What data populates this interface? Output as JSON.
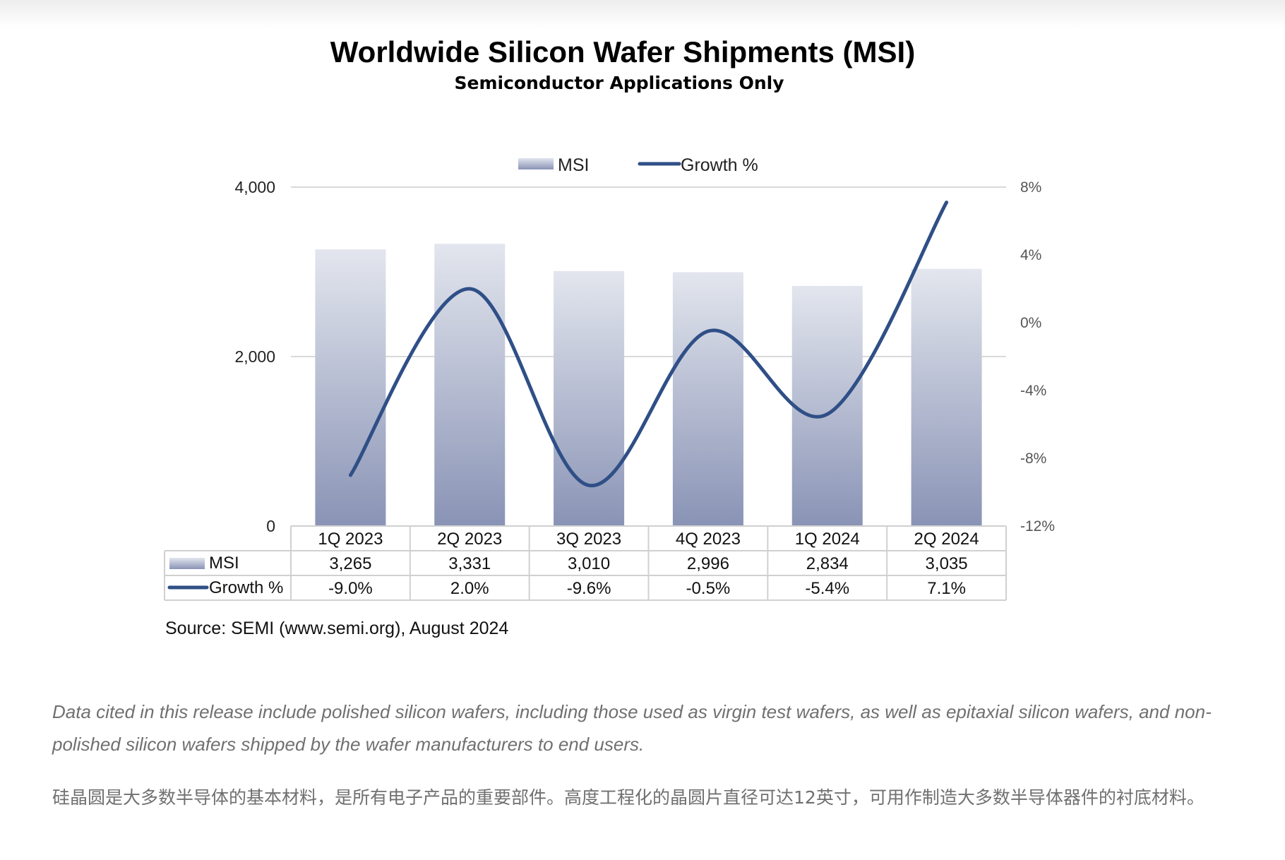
{
  "chart_data": {
    "type": "bar",
    "title": "Worldwide Silicon Wafer Shipments (MSI)",
    "subtitle": "Semiconductor Applications Only",
    "categories": [
      "1Q 2023",
      "2Q 2023",
      "3Q 2023",
      "4Q 2023",
      "1Q 2024",
      "2Q 2024"
    ],
    "series": [
      {
        "name": "MSI",
        "type": "bar",
        "axis": "left",
        "values": [
          3265,
          3331,
          3010,
          2996,
          2834,
          3035
        ],
        "labels": [
          "3,265",
          "3,331",
          "3,010",
          "2,996",
          "2,834",
          "3,035"
        ]
      },
      {
        "name": "Growth %",
        "type": "line",
        "axis": "right",
        "values": [
          -9.0,
          2.0,
          -9.6,
          -0.5,
          -5.4,
          7.1
        ],
        "labels": [
          "-9.0%",
          "2.0%",
          "-9.6%",
          "-0.5%",
          "-5.4%",
          "7.1%"
        ]
      }
    ],
    "ylim": [
      0,
      4000
    ],
    "yticks": [
      0,
      2000,
      4000
    ],
    "ytick_labels": [
      "0",
      "2,000",
      "4,000"
    ],
    "y2lim": [
      -12,
      8
    ],
    "y2ticks": [
      8,
      4,
      0,
      -4,
      -8,
      -12
    ],
    "y2tick_labels": [
      "8%",
      "4%",
      "0%",
      "-4%",
      "-8%",
      "-12%"
    ],
    "grid": true,
    "legend": "top-center",
    "data_table": true,
    "colors": {
      "bar_top": "#e3e6ee",
      "bar_bottom": "#8993b5",
      "line": "#2f4f86",
      "grid": "#d9d9d9",
      "table_border": "#d0d0d0"
    }
  },
  "source": "Source: SEMI (www.semi.org), August 2024",
  "note_en": "Data cited in this release include polished silicon wafers, including those used as virgin test wafers, as well as epitaxial silicon wafers, and non-polished silicon wafers shipped by the wafer manufacturers to end users.",
  "note_zh": "硅晶圆是大多数半导体的基本材料，是所有电子产品的重要部件。高度工程化的晶圆片直径可达12英寸，可用作制造大多数半导体器件的衬底材料。"
}
